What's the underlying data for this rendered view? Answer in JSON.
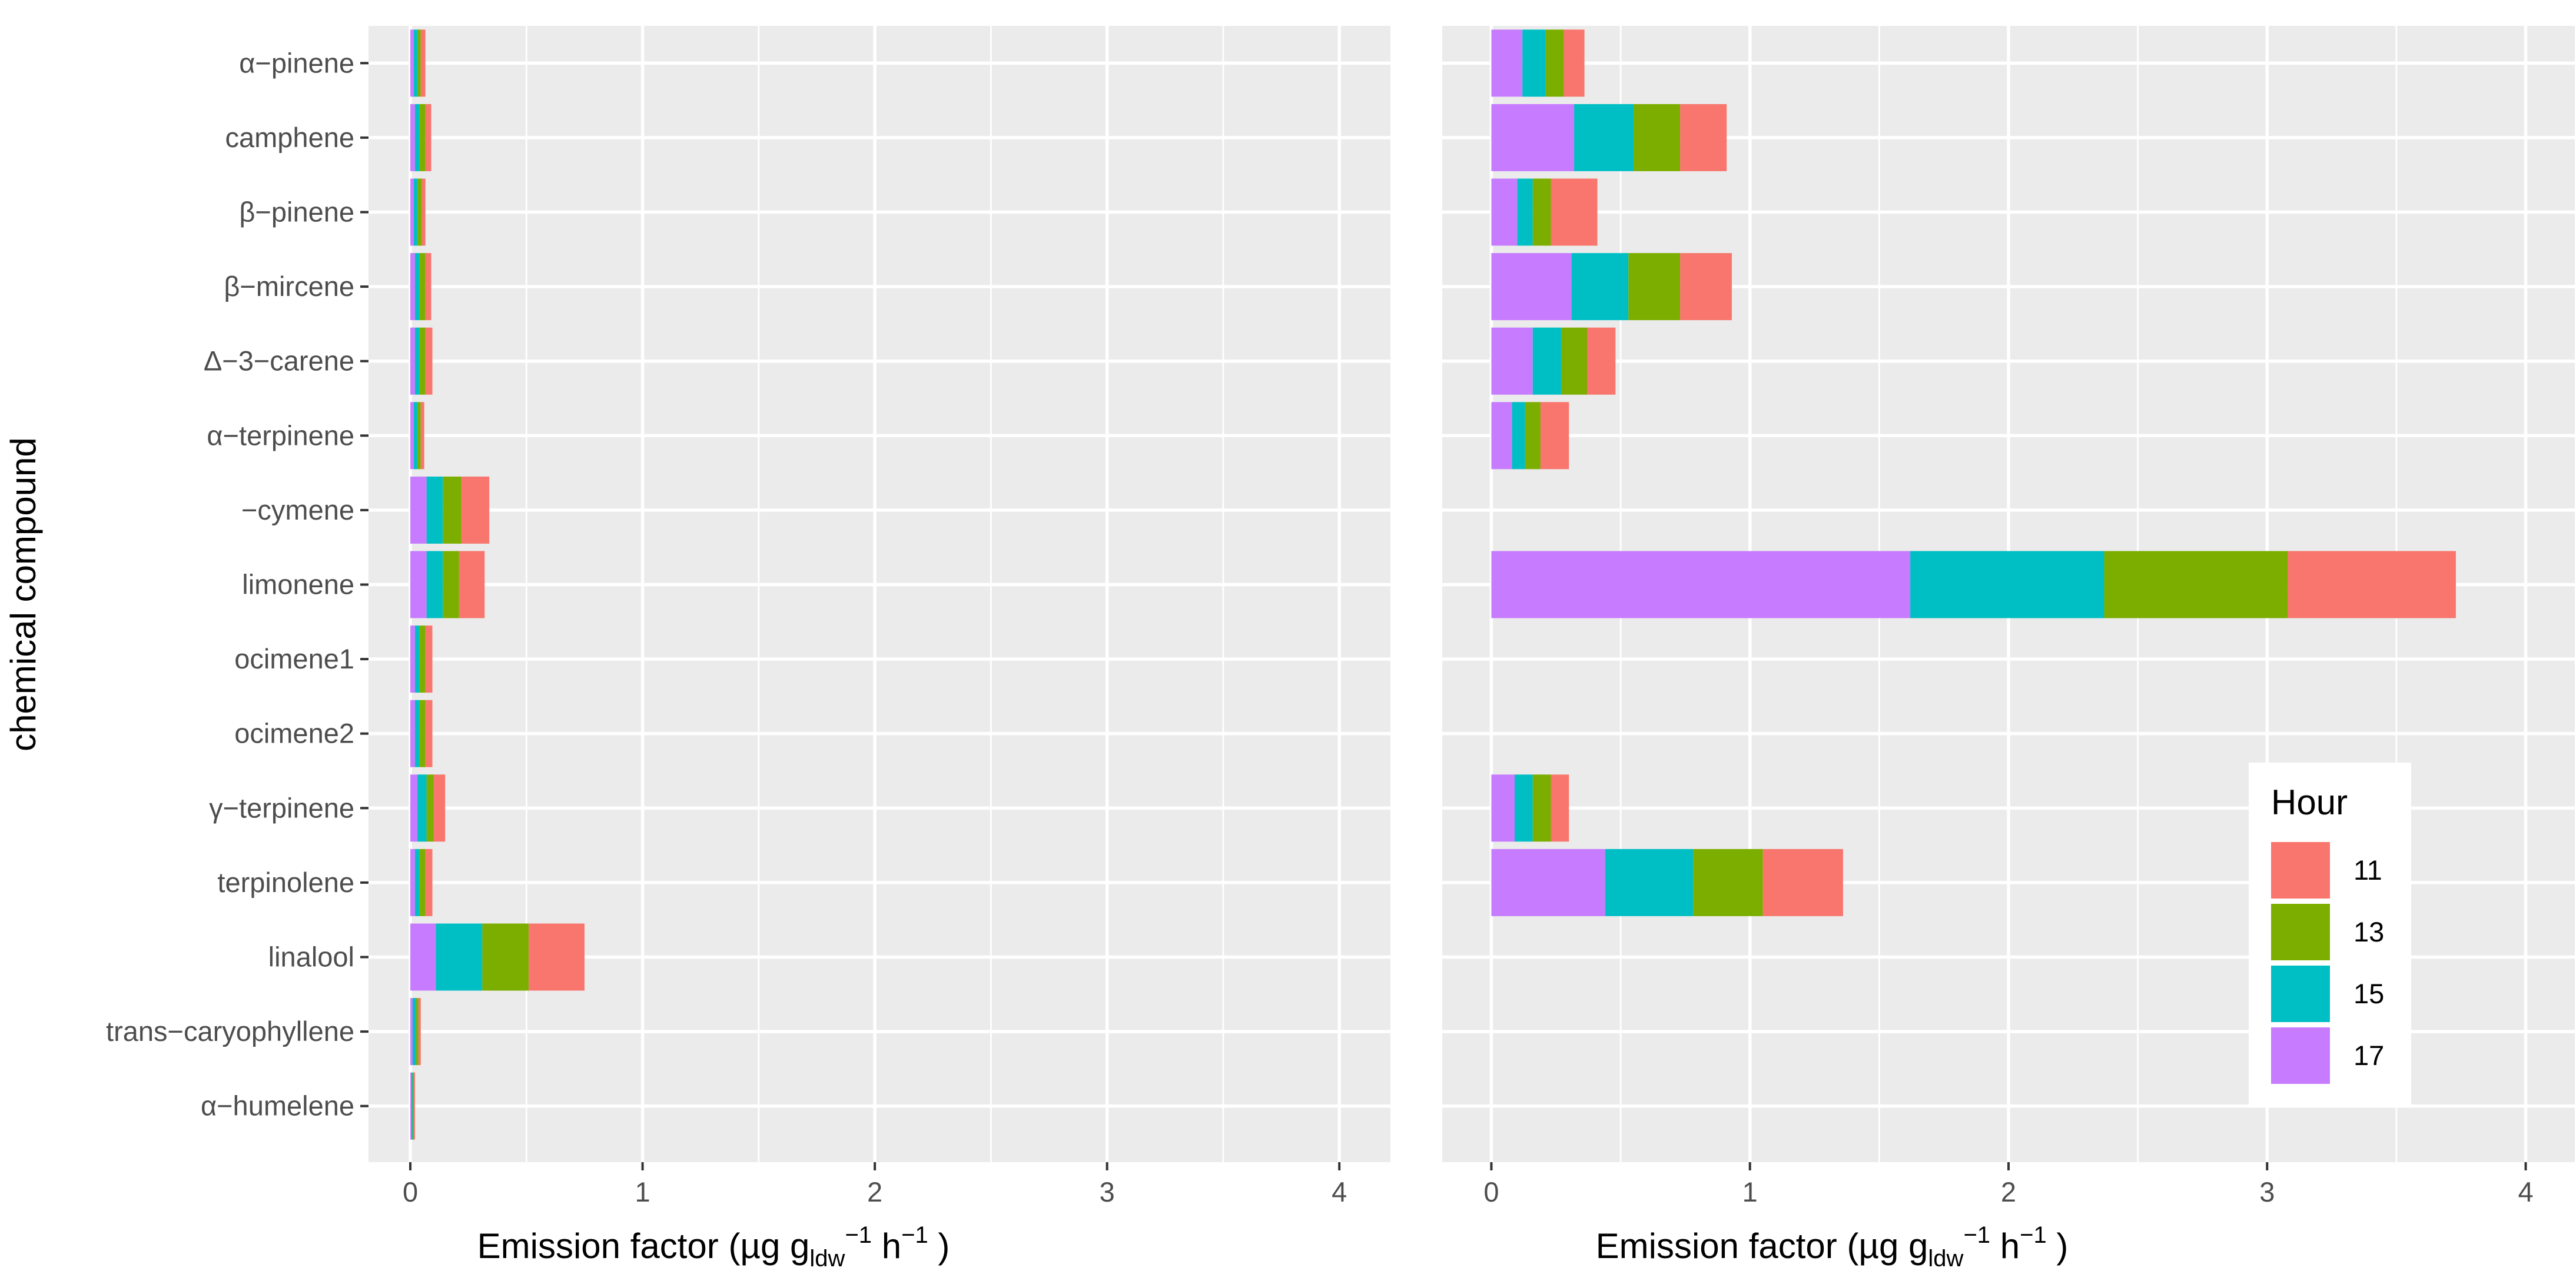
{
  "ylabel": "chemical compound",
  "xlabel": {
    "main": "Emission factor (µg g",
    "sub": "ldw",
    "sup1": "−1",
    "mid": " h",
    "sup2": "−1",
    "end": " )"
  },
  "legend": {
    "title": "Hour",
    "entries": [
      {
        "label": "11",
        "color": "#F8766D"
      },
      {
        "label": "13",
        "color": "#7CAE00"
      },
      {
        "label": "15",
        "color": "#00BFC4"
      },
      {
        "label": "17",
        "color": "#C77CFF"
      }
    ]
  },
  "chart_data": [
    {
      "type": "bar",
      "orientation": "horizontal",
      "stacked": true,
      "categories": [
        "α−pinene",
        "camphene",
        "β−pinene",
        "β−mircene",
        "Δ−3−carene",
        "α−terpinene",
        "−cymene",
        "limonene",
        "ocimene1",
        "ocimene2",
        "γ−terpinene",
        "terpinolene",
        "linalool",
        "trans−caryophyllene",
        "α−humelene"
      ],
      "xlim": [
        -0.18,
        4.22
      ],
      "xticks": [
        0,
        1,
        2,
        3,
        4
      ],
      "xlabel": "Emission factor (µg gldw −1 h−1 )",
      "ylabel": "chemical compound",
      "grid": true,
      "series": [
        {
          "name": "17",
          "color": "#C77CFF",
          "values": [
            0.015,
            0.02,
            0.015,
            0.02,
            0.02,
            0.015,
            0.07,
            0.07,
            0.02,
            0.02,
            0.03,
            0.02,
            0.11,
            0.01,
            0.005
          ]
        },
        {
          "name": "15",
          "color": "#00BFC4",
          "values": [
            0.015,
            0.02,
            0.015,
            0.02,
            0.02,
            0.015,
            0.07,
            0.07,
            0.02,
            0.02,
            0.04,
            0.02,
            0.2,
            0.015,
            0.005
          ]
        },
        {
          "name": "13",
          "color": "#7CAE00",
          "values": [
            0.015,
            0.025,
            0.02,
            0.025,
            0.025,
            0.015,
            0.08,
            0.07,
            0.025,
            0.025,
            0.03,
            0.025,
            0.2,
            0.01,
            0.005
          ]
        },
        {
          "name": "11",
          "color": "#F8766D",
          "values": [
            0.02,
            0.025,
            0.015,
            0.025,
            0.03,
            0.015,
            0.12,
            0.11,
            0.03,
            0.03,
            0.05,
            0.03,
            0.24,
            0.01,
            0.005
          ]
        }
      ]
    },
    {
      "type": "bar",
      "orientation": "horizontal",
      "stacked": true,
      "categories": [
        "α−pinene",
        "camphene",
        "β−pinene",
        "β−mircene",
        "Δ−3−carene",
        "α−terpinene",
        "−cymene",
        "limonene",
        "ocimene1",
        "ocimene2",
        "γ−terpinene",
        "terpinolene",
        "linalool",
        "trans−caryophyllene",
        "α−humelene"
      ],
      "xlim": [
        -0.19,
        4.19
      ],
      "xticks": [
        0,
        1,
        2,
        3,
        4
      ],
      "xlabel": "Emission factor (µg gldw −1 h−1 )",
      "grid": true,
      "series": [
        {
          "name": "17",
          "color": "#C77CFF",
          "values": [
            0.12,
            0.32,
            0.1,
            0.31,
            0.16,
            0.08,
            0,
            1.62,
            0,
            0,
            0.09,
            0.44,
            0,
            0,
            0
          ]
        },
        {
          "name": "15",
          "color": "#00BFC4",
          "values": [
            0.09,
            0.23,
            0.06,
            0.22,
            0.11,
            0.05,
            0,
            0.75,
            0,
            0,
            0.07,
            0.34,
            0,
            0,
            0
          ]
        },
        {
          "name": "13",
          "color": "#7CAE00",
          "values": [
            0.07,
            0.18,
            0.07,
            0.2,
            0.1,
            0.06,
            0,
            0.71,
            0,
            0,
            0.07,
            0.27,
            0,
            0,
            0
          ]
        },
        {
          "name": "11",
          "color": "#F8766D",
          "values": [
            0.08,
            0.18,
            0.18,
            0.2,
            0.11,
            0.11,
            0,
            0.65,
            0,
            0,
            0.07,
            0.31,
            0,
            0,
            0
          ]
        }
      ]
    }
  ]
}
